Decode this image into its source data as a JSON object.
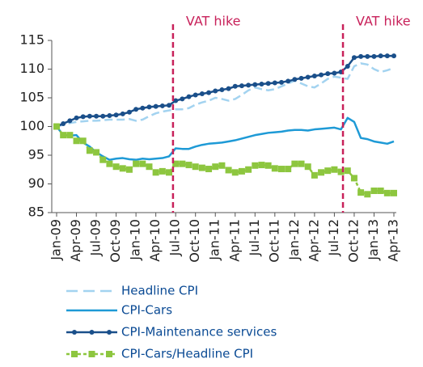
{
  "chart_data": {
    "type": "line",
    "categories": [
      "Jan-09",
      null,
      null,
      "Apr-09",
      null,
      null,
      "Jul-09",
      null,
      null,
      "Oct-09",
      null,
      null,
      "Jan-10",
      null,
      null,
      "Apr-10",
      null,
      null,
      "Jul-10",
      null,
      null,
      "Oct-10",
      null,
      null,
      "Jan-11",
      null,
      null,
      "Apr-11",
      null,
      null,
      "Jul-11",
      null,
      null,
      "Oct-11",
      null,
      null,
      "Jan-12",
      null,
      null,
      "Apr-12",
      null,
      null,
      "Jul-12",
      null,
      null,
      "Oct-12",
      null,
      null,
      "Jan-13",
      null,
      null,
      "Apr-13"
    ],
    "ylim": [
      85,
      115
    ],
    "yticks": [
      85,
      90,
      95,
      100,
      105,
      110,
      115
    ],
    "annotations": [
      {
        "text": "VAT hike",
        "x": 17.6,
        "color": "#c8215a"
      },
      {
        "text": "VAT hike",
        "x": 43.3,
        "color": "#c8215a"
      }
    ],
    "series": [
      {
        "name": "Headline CPI",
        "color": "#a3d3f0",
        "linestyle": "dashed",
        "marker": "none",
        "values": [
          100,
          100.3,
          100.6,
          100.8,
          100.9,
          101,
          101,
          101.1,
          101.2,
          101.2,
          101.2,
          101.3,
          101,
          101.2,
          101.8,
          102.3,
          102.6,
          102.8,
          103,
          103,
          103.2,
          103.8,
          104.2,
          104.5,
          105,
          104.8,
          104.5,
          104.8,
          105.5,
          106.3,
          106.8,
          106.5,
          106.3,
          106.5,
          107,
          107.5,
          108,
          107.5,
          107,
          106.8,
          107.5,
          108.3,
          108.7,
          108.5,
          108.3,
          110.5,
          111,
          110.8,
          110,
          109.5,
          109.8,
          110.2
        ]
      },
      {
        "name": "CPI-Cars",
        "color": "#1e9ad6",
        "linestyle": "solid",
        "marker": "none",
        "values": [
          100,
          98.5,
          98.4,
          98.5,
          97.2,
          96.5,
          95.5,
          94.8,
          94.2,
          94.4,
          94.5,
          94.3,
          94.2,
          94.4,
          94.3,
          94.4,
          94.5,
          94.8,
          96.2,
          96.1,
          96.1,
          96.5,
          96.8,
          97,
          97.1,
          97.2,
          97.4,
          97.6,
          97.9,
          98.2,
          98.5,
          98.7,
          98.9,
          99,
          99.1,
          99.3,
          99.4,
          99.4,
          99.3,
          99.5,
          99.6,
          99.7,
          99.8,
          99.5,
          101.5,
          100.8,
          98,
          97.8,
          97.4,
          97.2,
          97,
          97.4
        ]
      },
      {
        "name": "CPI-Maintenance services",
        "color": "#1a4f8a",
        "linestyle": "solid",
        "marker": "circle",
        "values": [
          100,
          100.5,
          101,
          101.5,
          101.7,
          101.8,
          101.8,
          101.8,
          101.9,
          102,
          102.2,
          102.5,
          103,
          103.2,
          103.4,
          103.5,
          103.6,
          103.7,
          104.5,
          104.8,
          105.2,
          105.5,
          105.7,
          105.9,
          106.2,
          106.4,
          106.6,
          107,
          107.1,
          107.2,
          107.3,
          107.4,
          107.5,
          107.6,
          107.7,
          107.9,
          108.2,
          108.4,
          108.6,
          108.8,
          109,
          109.2,
          109.3,
          109.5,
          110.5,
          112,
          112.2,
          112.2,
          112.2,
          112.3,
          112.3,
          112.3
        ]
      },
      {
        "name": "CPI-Cars/Headline CPI",
        "color": "#8dc63f",
        "linestyle": "dashed",
        "marker": "square",
        "values": [
          100,
          98.5,
          98.5,
          97.5,
          97.5,
          95.8,
          95.5,
          94.2,
          93.5,
          93,
          92.7,
          92.5,
          93.5,
          93.5,
          93,
          92,
          92.2,
          92,
          93.5,
          93.5,
          93.3,
          93,
          92.8,
          92.6,
          93,
          93.2,
          92.4,
          92,
          92.2,
          92.5,
          93.2,
          93.3,
          93.2,
          92.7,
          92.6,
          92.6,
          93.5,
          93.5,
          93,
          91.5,
          92,
          92.3,
          92.5,
          92.1,
          92.3,
          91,
          88.5,
          88.2,
          88.8,
          88.8,
          88.4,
          88.4
        ]
      }
    ]
  }
}
